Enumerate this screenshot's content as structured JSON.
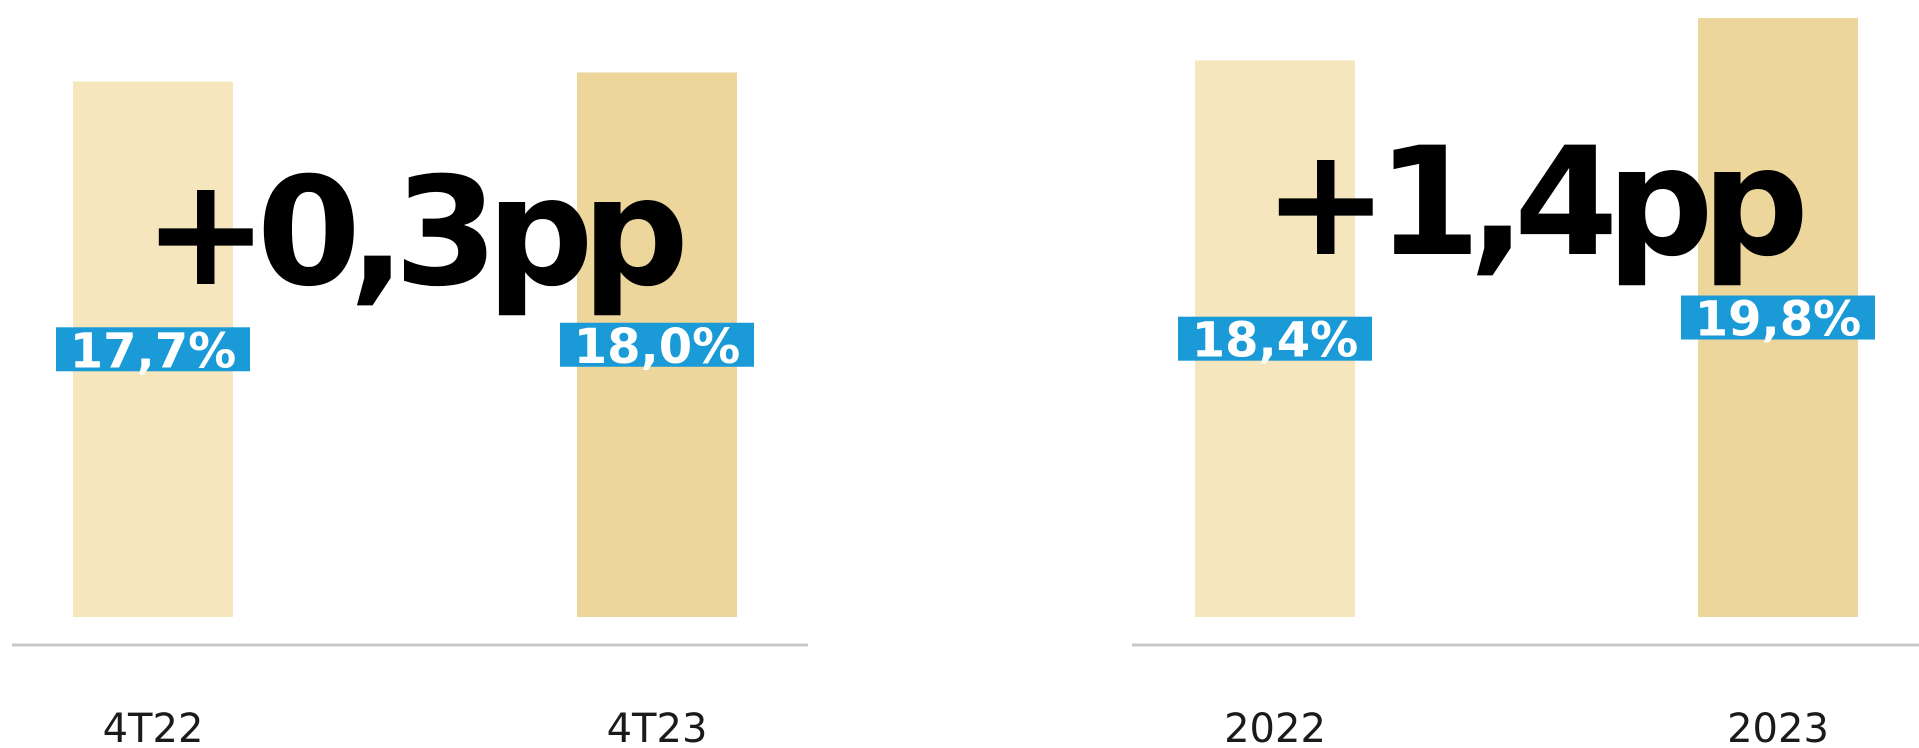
{
  "chart_data": [
    {
      "type": "bar",
      "annotation": "+0,3pp",
      "categories": [
        "4T22",
        "4T23"
      ],
      "values": [
        17.7,
        18.0
      ],
      "value_labels": [
        "17,7%",
        "18,0%"
      ],
      "colors": [
        "#f5e6bd",
        "#edd69c"
      ],
      "label_color": "#1a9ad6",
      "ylim": [
        0,
        20
      ]
    },
    {
      "type": "bar",
      "annotation": "+1,4pp",
      "categories": [
        "2022",
        "2023"
      ],
      "values": [
        18.4,
        19.8
      ],
      "value_labels": [
        "18,4%",
        "19,8%"
      ],
      "colors": [
        "#f5e6bd",
        "#edd69c"
      ],
      "label_color": "#1a9ad6",
      "ylim": [
        0,
        20
      ]
    }
  ]
}
